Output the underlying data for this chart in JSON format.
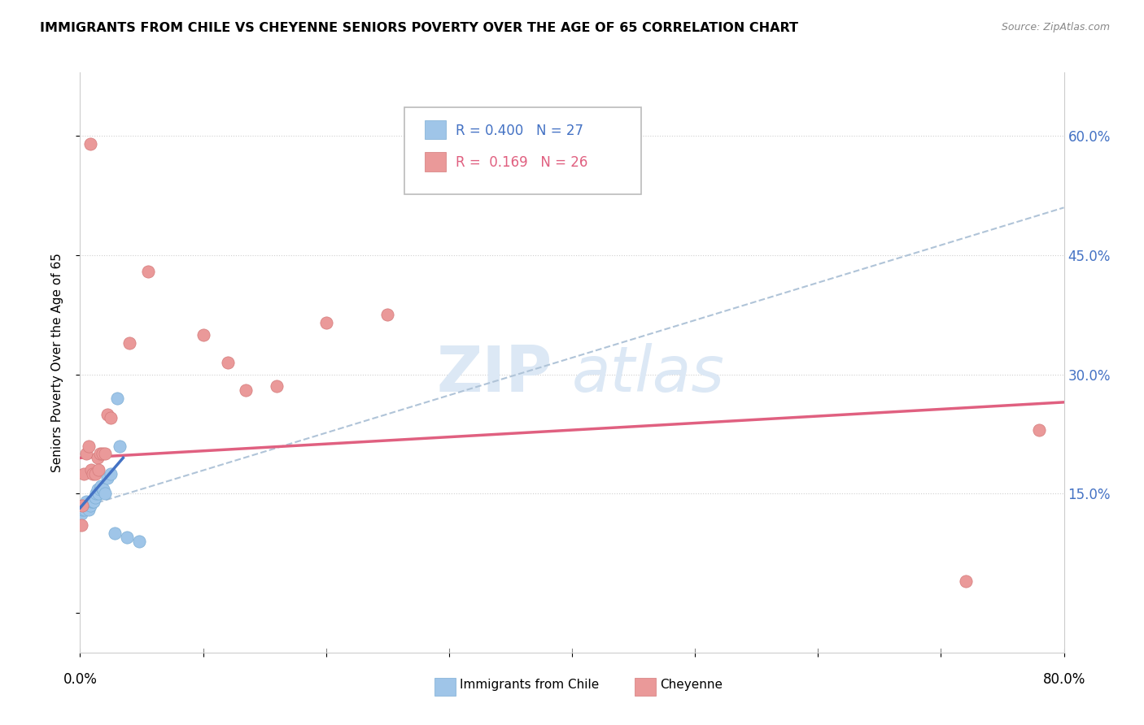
{
  "title": "IMMIGRANTS FROM CHILE VS CHEYENNE SENIORS POVERTY OVER THE AGE OF 65 CORRELATION CHART",
  "source": "Source: ZipAtlas.com",
  "ylabel": "Seniors Poverty Over the Age of 65",
  "xlim": [
    0.0,
    0.8
  ],
  "ylim": [
    -0.05,
    0.68
  ],
  "yticks": [
    0.0,
    0.15,
    0.3,
    0.45,
    0.6
  ],
  "xticks": [
    0.0,
    0.1,
    0.2,
    0.3,
    0.4,
    0.5,
    0.6,
    0.7,
    0.8
  ],
  "legend_r1": "R = 0.400",
  "legend_n1": "N = 27",
  "legend_r2": "R =  0.169",
  "legend_n2": "N = 26",
  "color_blue": "#9fc5e8",
  "color_pink": "#ea9999",
  "color_trendline_blue": "#b0c4d8",
  "color_trendline_pink": "#e06080",
  "color_trendline_blue_solid": "#4472c4",
  "blue_x": [
    0.001,
    0.002,
    0.003,
    0.004,
    0.005,
    0.006,
    0.007,
    0.008,
    0.009,
    0.01,
    0.011,
    0.012,
    0.013,
    0.014,
    0.015,
    0.016,
    0.017,
    0.018,
    0.019,
    0.02,
    0.022,
    0.025,
    0.028,
    0.03,
    0.032,
    0.038,
    0.048
  ],
  "blue_y": [
    0.125,
    0.13,
    0.135,
    0.13,
    0.14,
    0.135,
    0.13,
    0.135,
    0.14,
    0.14,
    0.14,
    0.145,
    0.15,
    0.155,
    0.15,
    0.155,
    0.16,
    0.155,
    0.155,
    0.15,
    0.17,
    0.175,
    0.1,
    0.27,
    0.21,
    0.095,
    0.09
  ],
  "pink_x": [
    0.001,
    0.002,
    0.003,
    0.005,
    0.007,
    0.008,
    0.009,
    0.01,
    0.012,
    0.014,
    0.015,
    0.016,
    0.018,
    0.02,
    0.022,
    0.025,
    0.04,
    0.055,
    0.1,
    0.12,
    0.135,
    0.16,
    0.2,
    0.25,
    0.72,
    0.78
  ],
  "pink_y": [
    0.11,
    0.135,
    0.175,
    0.2,
    0.21,
    0.59,
    0.18,
    0.175,
    0.175,
    0.195,
    0.18,
    0.2,
    0.2,
    0.2,
    0.25,
    0.245,
    0.34,
    0.43,
    0.35,
    0.315,
    0.28,
    0.285,
    0.365,
    0.375,
    0.04,
    0.23
  ],
  "blue_trend_x": [
    0.0,
    0.8
  ],
  "blue_trend_y": [
    0.132,
    0.51
  ],
  "pink_trend_x": [
    0.0,
    0.8
  ],
  "pink_trend_y": [
    0.195,
    0.265
  ],
  "watermark_zip_color": "#dce8f5",
  "watermark_atlas_color": "#dce8f5"
}
